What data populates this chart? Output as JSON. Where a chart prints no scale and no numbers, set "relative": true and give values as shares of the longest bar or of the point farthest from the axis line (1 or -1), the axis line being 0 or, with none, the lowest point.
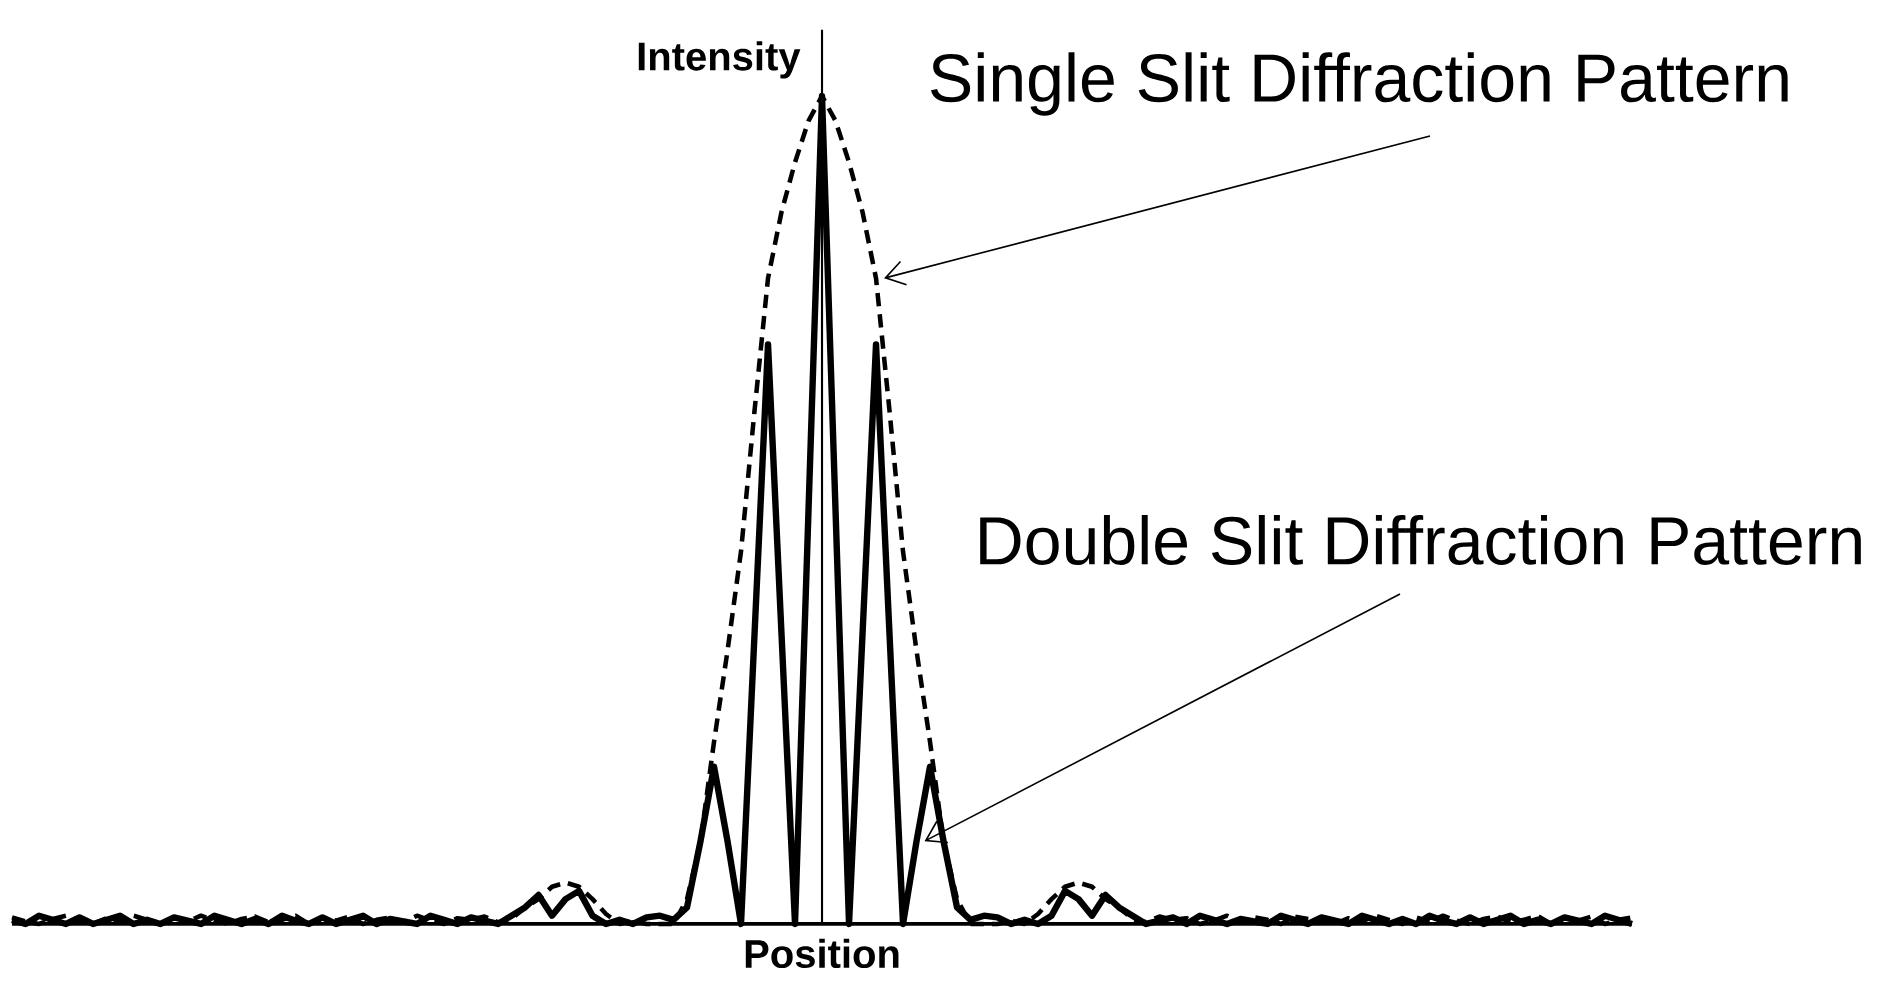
{
  "chart_data": {
    "type": "line",
    "relative": true,
    "xlabel": "Position",
    "ylabel": "Intensity",
    "categories": [
      null,
      null,
      null,
      null,
      null,
      null,
      null,
      null,
      null,
      null,
      null,
      null,
      null,
      null,
      null,
      null,
      null,
      null,
      null,
      null,
      null,
      null,
      null,
      null,
      null,
      null,
      null,
      null,
      null,
      null,
      null,
      null,
      null,
      null,
      null,
      null,
      null,
      null,
      null,
      null,
      null,
      null,
      null,
      null,
      null,
      null,
      null,
      null,
      null,
      null,
      null,
      null,
      null,
      null,
      null,
      null,
      null,
      null,
      null,
      null,
      null,
      null,
      null,
      null,
      null,
      null,
      null,
      null,
      null,
      null,
      null,
      null,
      null,
      null,
      null,
      null,
      null,
      null,
      null,
      null,
      null,
      null,
      null,
      null,
      null,
      null,
      null,
      null,
      null,
      null,
      null,
      null,
      null,
      null,
      null,
      null,
      null,
      null,
      null,
      null,
      null,
      null,
      null,
      null,
      null,
      null,
      null,
      null,
      null,
      null,
      null,
      null,
      null,
      null,
      null,
      null,
      null,
      null,
      null,
      null,
      null
    ],
    "series": [
      {
        "name": "Single Slit Diffraction Pattern",
        "color": "#000000",
        "line_style": "dashed",
        "values": [
          0.008,
          0.003,
          0,
          0.006,
          0.01,
          0.004,
          0,
          0.007,
          0.003,
          0.01,
          0.005,
          0,
          0.008,
          0.003,
          0.01,
          0.004,
          0,
          0.006,
          0.009,
          0.002,
          0.005,
          0.01,
          0,
          0.007,
          0.004,
          0.009,
          0,
          0.005,
          0.008,
          0.002,
          0.01,
          0.004,
          0,
          0.007,
          0.005,
          0.009,
          0.002,
          0.006,
          0.02,
          0.03,
          0.045,
          0.05,
          0.045,
          0.03,
          0.012,
          0,
          0.004,
          0,
          0,
          0,
          0.03,
          0.1,
          0.22,
          0.33,
          0.45,
          0.62,
          0.78,
          0.86,
          0.92,
          0.97,
          1.0,
          0.97,
          0.92,
          0.86,
          0.78,
          0.62,
          0.45,
          0.33,
          0.22,
          0.1,
          0.03,
          0,
          0,
          0,
          0.004,
          0,
          0.012,
          0.03,
          0.045,
          0.05,
          0.045,
          0.03,
          0.02,
          0.006,
          0.002,
          0.009,
          0.005,
          0.007,
          0,
          0.004,
          0.01,
          0.002,
          0.008,
          0.005,
          0,
          0.009,
          0.006,
          0.004,
          0,
          0.007,
          0.003,
          0.01,
          0.005,
          0,
          0.008,
          0.003,
          0.01,
          0.004,
          0,
          0.006,
          0.009,
          0.002,
          0.005,
          0.01,
          0,
          0.007,
          0.004,
          0.009,
          0,
          0.005,
          0.008
        ]
      },
      {
        "name": "Double Slit Diffraction Pattern",
        "color": "#000000",
        "line_style": "solid",
        "values": [
          0.005,
          0,
          0.01,
          0.005,
          0,
          0.008,
          0,
          0.005,
          0.01,
          0,
          0.005,
          0,
          0.008,
          0.004,
          0,
          0.01,
          0.005,
          0,
          0.006,
          0,
          0.01,
          0.004,
          0,
          0.008,
          0,
          0.005,
          0.01,
          0,
          0.006,
          0.003,
          0,
          0.01,
          0.005,
          0,
          0.008,
          0.004,
          0,
          0.01,
          0.02,
          0.035,
          0.01,
          0.03,
          0.04,
          0.01,
          0,
          0.005,
          0,
          0.008,
          0.01,
          0.005,
          0.02,
          0.1,
          0.19,
          0.1,
          0,
          0.35,
          0.7,
          0.35,
          0,
          0.5,
          1.0,
          0.5,
          0,
          0.35,
          0.7,
          0.35,
          0,
          0.1,
          0.19,
          0.1,
          0.02,
          0.005,
          0.01,
          0.008,
          0,
          0.005,
          0,
          0.01,
          0.04,
          0.03,
          0.01,
          0.035,
          0.02,
          0.01,
          0,
          0.004,
          0.008,
          0,
          0.01,
          0.005,
          0,
          0.006,
          0.003,
          0,
          0.01,
          0.005,
          0,
          0.008,
          0.004,
          0,
          0.01,
          0.005,
          0,
          0.006,
          0,
          0.01,
          0.004,
          0,
          0.008,
          0,
          0.005,
          0.01,
          0,
          0.005,
          0,
          0.008,
          0.004,
          0,
          0.01,
          0.005,
          0
        ]
      }
    ]
  }
}
